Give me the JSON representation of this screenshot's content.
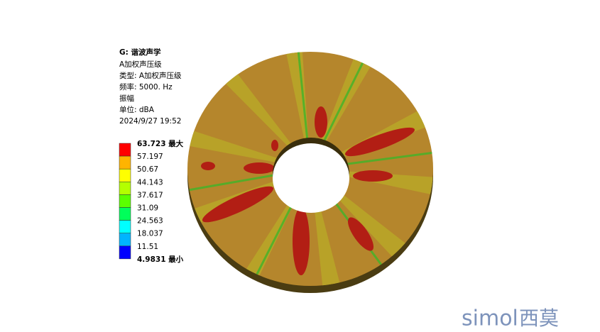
{
  "header": {
    "title": "G: 谐波声学",
    "lines": [
      "A加权声压级",
      "类型: A加权声压级",
      "频率: 5000.   Hz",
      "振幅",
      "单位: dBA",
      "2024/9/27 19:52"
    ]
  },
  "legend": {
    "labels": [
      "63.723 最大",
      "57.197",
      "50.67",
      "44.143",
      "37.617",
      "31.09",
      "24.563",
      "18.037",
      "11.51",
      "4.9831 最小"
    ],
    "colors": [
      "#ff0000",
      "#ffb400",
      "#ffff00",
      "#b4ff00",
      "#5aff00",
      "#00ff5a",
      "#00ffff",
      "#00b4ff",
      "#0000ff"
    ]
  },
  "watermark": {
    "brand": "simol",
    "name": "西莫"
  }
}
